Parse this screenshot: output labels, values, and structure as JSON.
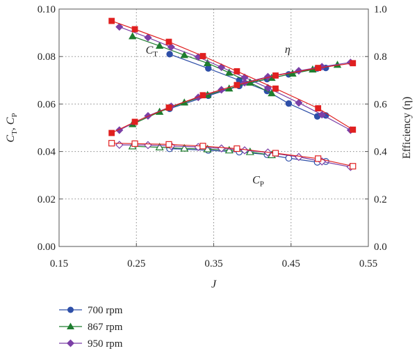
{
  "chart_data": {
    "type": "line",
    "x_axis": {
      "label": "J",
      "min": 0.15,
      "max": 0.55,
      "ticks": [
        0.15,
        0.25,
        0.35,
        0.45,
        0.55
      ],
      "tick_labels": [
        "0.15",
        "0.25",
        "0.35",
        "0.45",
        "0.55"
      ]
    },
    "y_axis_left": {
      "label_main": "C",
      "label_sub1": "T",
      "label_sep": ", ",
      "label_main2": "C",
      "label_sub2": "P",
      "min": 0,
      "max": 0.1,
      "ticks": [
        0,
        0.02,
        0.04,
        0.06,
        0.08,
        0.1
      ],
      "tick_labels": [
        "0.00",
        "0.02",
        "0.04",
        "0.06",
        "0.08",
        "0.10"
      ]
    },
    "y_axis_right": {
      "label": "Efficiency (η)",
      "min": 0,
      "max": 1,
      "ticks": [
        0,
        0.2,
        0.4,
        0.6,
        0.8,
        1.0
      ],
      "tick_labels": [
        "0.0",
        "0.2",
        "0.4",
        "0.6",
        "0.8",
        "1.0"
      ]
    },
    "grid": "dotted",
    "annotations": [
      {
        "main": "C",
        "sub": "T",
        "x": 0.262,
        "y": 0.0812
      },
      {
        "main": "C",
        "sub": "P",
        "x": 0.4,
        "y": 0.0265
      },
      {
        "main": "η",
        "sub": "",
        "x": 0.442,
        "y": 0.0815
      }
    ],
    "legend": {
      "placement": "bottom-left",
      "entries": [
        "700 rpm",
        "867 rpm",
        "950 rpm"
      ]
    },
    "series": [
      {
        "name": "700 rpm",
        "color": "#2e4fa8",
        "marker": "circle",
        "axis": "left",
        "curve": "CT",
        "x": [
          0.293,
          0.343,
          0.383,
          0.419,
          0.447,
          0.484,
          0.495
        ],
        "y": [
          0.081,
          0.075,
          0.07,
          0.0655,
          0.0602,
          0.0548,
          0.0552
        ]
      },
      {
        "name": "867 rpm",
        "color": "#1e7d2f",
        "marker": "triangle",
        "axis": "left",
        "curve": "CT",
        "x": [
          0.245,
          0.28,
          0.312,
          0.342,
          0.37,
          0.397,
          0.425
        ],
        "y": [
          0.0885,
          0.0845,
          0.0806,
          0.0772,
          0.0732,
          0.069,
          0.0645
        ]
      },
      {
        "name": "950 rpm",
        "color": "#7b3fa6",
        "marker": "diamond",
        "axis": "left",
        "curve": "CT",
        "x": [
          0.228,
          0.265,
          0.295,
          0.33,
          0.36,
          0.39,
          0.42,
          0.46,
          0.49,
          0.527
        ],
        "y": [
          0.0925,
          0.088,
          0.084,
          0.0798,
          0.0755,
          0.0712,
          0.0668,
          0.0605,
          0.0555,
          0.049
        ]
      },
      {
        "name": "",
        "color": "#e02020",
        "marker": "square",
        "axis": "left",
        "curve": "CT",
        "x": [
          0.218,
          0.248,
          0.292,
          0.336,
          0.38,
          0.43,
          0.485,
          0.53
        ],
        "y": [
          0.095,
          0.0915,
          0.0862,
          0.0802,
          0.0738,
          0.0665,
          0.0582,
          0.0492
        ]
      },
      {
        "name": "",
        "color": "#2e4fa8",
        "marker": "circle-open",
        "axis": "left",
        "curve": "CP",
        "x": [
          0.293,
          0.343,
          0.383,
          0.419,
          0.447,
          0.484,
          0.495
        ],
        "y": [
          0.0412,
          0.0405,
          0.0398,
          0.0387,
          0.0372,
          0.0355,
          0.0358
        ]
      },
      {
        "name": "",
        "color": "#1e7d2f",
        "marker": "triangle-open",
        "axis": "left",
        "curve": "CP",
        "x": [
          0.245,
          0.28,
          0.312,
          0.342,
          0.37,
          0.397,
          0.425
        ],
        "y": [
          0.0422,
          0.0418,
          0.0413,
          0.041,
          0.0405,
          0.0398,
          0.0385
        ]
      },
      {
        "name": "",
        "color": "#7b3fa6",
        "marker": "diamond-open",
        "axis": "left",
        "curve": "CP",
        "x": [
          0.228,
          0.265,
          0.295,
          0.33,
          0.36,
          0.39,
          0.42,
          0.46,
          0.49,
          0.527
        ],
        "y": [
          0.0428,
          0.0427,
          0.0423,
          0.0419,
          0.0413,
          0.0405,
          0.0396,
          0.0377,
          0.0358,
          0.0335
        ]
      },
      {
        "name": "",
        "color": "#e02020",
        "marker": "square-open",
        "axis": "left",
        "curve": "CP",
        "x": [
          0.218,
          0.248,
          0.292,
          0.336,
          0.38,
          0.43,
          0.485,
          0.53
        ],
        "y": [
          0.0435,
          0.0433,
          0.043,
          0.0423,
          0.0412,
          0.0393,
          0.037,
          0.0338
        ]
      },
      {
        "name": "",
        "color": "#2e4fa8",
        "marker": "circle",
        "axis": "right",
        "curve": "eta",
        "x": [
          0.293,
          0.343,
          0.383,
          0.419,
          0.447,
          0.484,
          0.495
        ],
        "y": [
          0.58,
          0.635,
          0.676,
          0.705,
          0.725,
          0.75,
          0.752
        ]
      },
      {
        "name": "",
        "color": "#1e7d2f",
        "marker": "triangle",
        "axis": "right",
        "curve": "eta",
        "x": [
          0.245,
          0.28,
          0.312,
          0.342,
          0.37,
          0.397,
          0.425,
          0.452,
          0.478,
          0.51
        ],
        "y": [
          0.515,
          0.567,
          0.606,
          0.638,
          0.665,
          0.69,
          0.71,
          0.728,
          0.745,
          0.765
        ]
      },
      {
        "name": "",
        "color": "#7b3fa6",
        "marker": "diamond",
        "axis": "right",
        "curve": "eta",
        "x": [
          0.228,
          0.265,
          0.295,
          0.33,
          0.36,
          0.39,
          0.42,
          0.46,
          0.49,
          0.527
        ],
        "y": [
          0.49,
          0.55,
          0.59,
          0.628,
          0.66,
          0.69,
          0.715,
          0.74,
          0.757,
          0.775
        ]
      },
      {
        "name": "",
        "color": "#e02020",
        "marker": "square",
        "axis": "right",
        "curve": "eta",
        "x": [
          0.218,
          0.248,
          0.292,
          0.336,
          0.38,
          0.43,
          0.485,
          0.53
        ],
        "y": [
          0.478,
          0.525,
          0.585,
          0.637,
          0.68,
          0.72,
          0.752,
          0.772
        ]
      }
    ]
  }
}
